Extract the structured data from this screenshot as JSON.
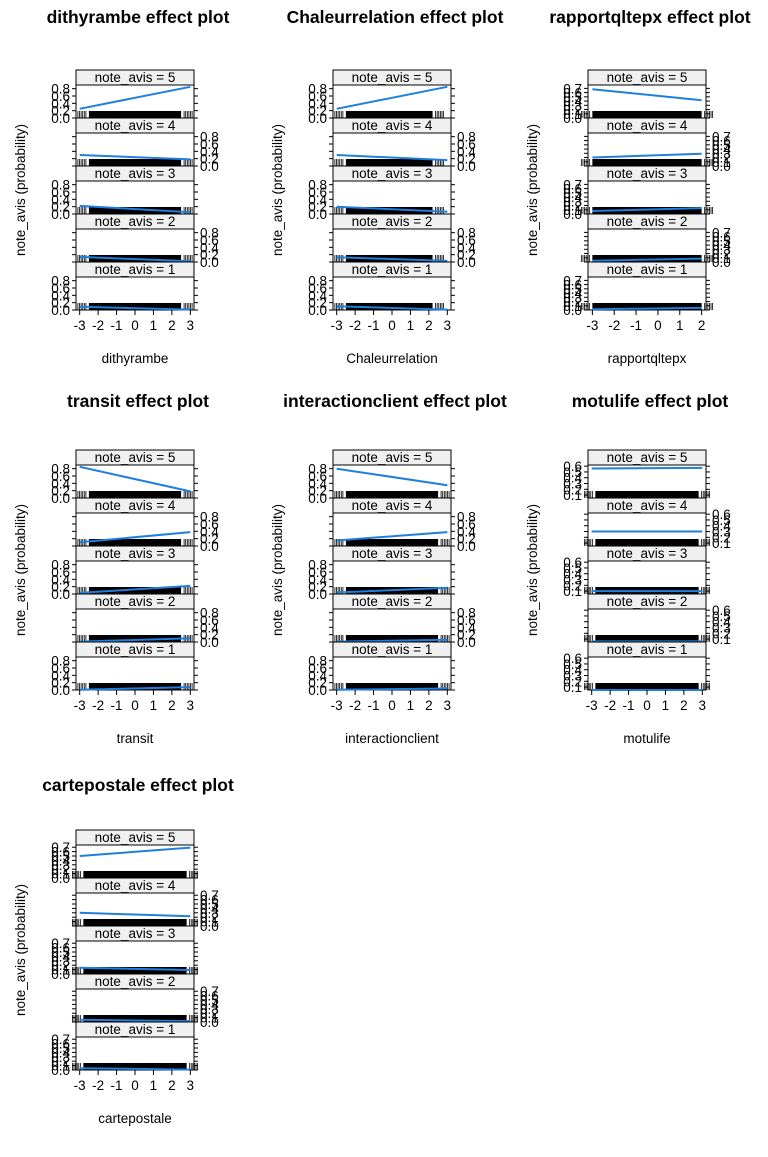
{
  "colors": {
    "line": "#1e7fe0",
    "strip_bg": "#f0f0f0",
    "frame": "#000000"
  },
  "chart_data": [
    {
      "type": "line",
      "title": "dithyrambe effect plot",
      "xlabel": "dithyrambe",
      "ylabel": "note_avis (probability)",
      "xlim": [
        -3.2,
        3.2
      ],
      "xticks": [
        "-3",
        "-2",
        "-1",
        "0",
        "1",
        "2",
        "3"
      ],
      "ylim": [
        0,
        0.9
      ],
      "yticks": [
        "0.0",
        "0.2",
        "0.4",
        "0.6",
        "0.8"
      ],
      "rug_range": [
        -2.5,
        2.5
      ],
      "grid": false,
      "series": [
        {
          "name": "note_avis = 5",
          "x": [
            -3,
            3
          ],
          "y": [
            0.25,
            0.85
          ]
        },
        {
          "name": "note_avis = 4",
          "x": [
            -3,
            3
          ],
          "y": [
            0.3,
            0.18
          ]
        },
        {
          "name": "note_avis = 3",
          "x": [
            -3,
            3
          ],
          "y": [
            0.22,
            0.05
          ]
        },
        {
          "name": "note_avis = 2",
          "x": [
            -3,
            3
          ],
          "y": [
            0.14,
            0.02
          ]
        },
        {
          "name": "note_avis = 1",
          "x": [
            -3,
            3
          ],
          "y": [
            0.09,
            0.01
          ]
        }
      ]
    },
    {
      "type": "line",
      "title": "Chaleurrelation effect plot",
      "xlabel": "Chaleurrelation",
      "ylabel": "note_avis (probability)",
      "xlim": [
        -3.2,
        3.2
      ],
      "xticks": [
        "-3",
        "-2",
        "-1",
        "0",
        "1",
        "2",
        "3"
      ],
      "ylim": [
        0,
        0.9
      ],
      "yticks": [
        "0.0",
        "0.2",
        "0.4",
        "0.6",
        "0.8"
      ],
      "rug_range": [
        -2.5,
        2.2
      ],
      "grid": false,
      "series": [
        {
          "name": "note_avis = 5",
          "x": [
            -3,
            3
          ],
          "y": [
            0.25,
            0.85
          ]
        },
        {
          "name": "note_avis = 4",
          "x": [
            -3,
            3
          ],
          "y": [
            0.3,
            0.16
          ]
        },
        {
          "name": "note_avis = 3",
          "x": [
            -3,
            3
          ],
          "y": [
            0.2,
            0.06
          ]
        },
        {
          "name": "note_avis = 2",
          "x": [
            -3,
            3
          ],
          "y": [
            0.13,
            0.03
          ]
        },
        {
          "name": "note_avis = 1",
          "x": [
            -3,
            3
          ],
          "y": [
            0.1,
            0.01
          ]
        }
      ]
    },
    {
      "type": "line",
      "title": "rapportqltepx effect plot",
      "xlabel": "rapportqltepx",
      "ylabel": "note_avis (probability)",
      "xlim": [
        -3.2,
        2.2
      ],
      "xticks": [
        "-3",
        "-2",
        "-1",
        "0",
        "1",
        "2"
      ],
      "ylim": [
        0,
        0.78
      ],
      "yticks": [
        "0.0",
        "0.1",
        "0.2",
        "0.3",
        "0.4",
        "0.5",
        "0.6",
        "0.7"
      ],
      "rug_range": [
        -3,
        2
      ],
      "grid": false,
      "series": [
        {
          "name": "note_avis = 5",
          "x": [
            -3,
            2
          ],
          "y": [
            0.68,
            0.42
          ]
        },
        {
          "name": "note_avis = 4",
          "x": [
            -3,
            2
          ],
          "y": [
            0.2,
            0.29
          ]
        },
        {
          "name": "note_avis = 3",
          "x": [
            -3,
            2
          ],
          "y": [
            0.07,
            0.14
          ]
        },
        {
          "name": "note_avis = 2",
          "x": [
            -3,
            2
          ],
          "y": [
            0.03,
            0.08
          ]
        },
        {
          "name": "note_avis = 1",
          "x": [
            -3,
            2
          ],
          "y": [
            0.02,
            0.05
          ]
        }
      ]
    },
    {
      "type": "line",
      "title": "transit effect plot",
      "xlabel": "transit",
      "ylabel": "note_avis (probability)",
      "xlim": [
        -3.2,
        3.2
      ],
      "xticks": [
        "-3",
        "-2",
        "-1",
        "0",
        "1",
        "2",
        "3"
      ],
      "ylim": [
        0,
        0.9
      ],
      "yticks": [
        "0.0",
        "0.2",
        "0.4",
        "0.6",
        "0.8"
      ],
      "rug_range": [
        -2.5,
        2.5
      ],
      "grid": false,
      "series": [
        {
          "name": "note_avis = 5",
          "x": [
            -3,
            3
          ],
          "y": [
            0.85,
            0.18
          ]
        },
        {
          "name": "note_avis = 4",
          "x": [
            -3,
            3
          ],
          "y": [
            0.1,
            0.38
          ]
        },
        {
          "name": "note_avis = 3",
          "x": [
            -3,
            3
          ],
          "y": [
            0.03,
            0.22
          ]
        },
        {
          "name": "note_avis = 2",
          "x": [
            -3,
            3
          ],
          "y": [
            0.01,
            0.1
          ]
        },
        {
          "name": "note_avis = 1",
          "x": [
            -3,
            3
          ],
          "y": [
            0.005,
            0.08
          ]
        }
      ]
    },
    {
      "type": "line",
      "title": "interactionclient effect plot",
      "xlabel": "interactionclient",
      "ylabel": "note_avis (probability)",
      "xlim": [
        -3.2,
        3.2
      ],
      "xticks": [
        "-3",
        "-2",
        "-1",
        "0",
        "1",
        "2",
        "3"
      ],
      "ylim": [
        0,
        0.9
      ],
      "yticks": [
        "0.0",
        "0.2",
        "0.4",
        "0.6",
        "0.8"
      ],
      "rug_range": [
        -2.5,
        2.5
      ],
      "grid": false,
      "series": [
        {
          "name": "note_avis = 5",
          "x": [
            -3,
            3
          ],
          "y": [
            0.8,
            0.35
          ]
        },
        {
          "name": "note_avis = 4",
          "x": [
            -3,
            3
          ],
          "y": [
            0.15,
            0.38
          ]
        },
        {
          "name": "note_avis = 3",
          "x": [
            -3,
            3
          ],
          "y": [
            0.04,
            0.17
          ]
        },
        {
          "name": "note_avis = 2",
          "x": [
            -3,
            3
          ],
          "y": [
            0.01,
            0.06
          ]
        },
        {
          "name": "note_avis = 1",
          "x": [
            -3,
            3
          ],
          "y": [
            0.005,
            0.04
          ]
        }
      ]
    },
    {
      "type": "line",
      "title": "motulife effect plot",
      "xlabel": "motulife",
      "ylabel": "note_avis (probability)",
      "xlim": [
        -3.2,
        3.2
      ],
      "xticks": [
        "-3",
        "-2",
        "-1",
        "0",
        "1",
        "2",
        "3"
      ],
      "ylim": [
        0.05,
        0.62
      ],
      "yticks": [
        "0.1",
        "0.2",
        "0.3",
        "0.4",
        "0.5",
        "0.6"
      ],
      "rug_range": [
        -2.8,
        2.8
      ],
      "grid": false,
      "series": [
        {
          "name": "note_avis = 5",
          "x": [
            -3,
            3
          ],
          "y": [
            0.56,
            0.57
          ]
        },
        {
          "name": "note_avis = 4",
          "x": [
            -3,
            3
          ],
          "y": [
            0.3,
            0.3
          ]
        },
        {
          "name": "note_avis = 3",
          "x": [
            -3,
            3
          ],
          "y": [
            0.1,
            0.1
          ]
        },
        {
          "name": "note_avis = 2",
          "x": [
            -3,
            3
          ],
          "y": [
            0.06,
            0.06
          ]
        },
        {
          "name": "note_avis = 1",
          "x": [
            -3,
            3
          ],
          "y": [
            0.05,
            0.05
          ]
        }
      ]
    },
    {
      "type": "line",
      "title": "cartepostale effect plot",
      "xlabel": "cartepostale",
      "ylabel": "note_avis (probability)",
      "xlim": [
        -3.2,
        3.2
      ],
      "xticks": [
        "-3",
        "-2",
        "-1",
        "0",
        "1",
        "2",
        "3"
      ],
      "ylim": [
        0,
        0.75
      ],
      "yticks": [
        "0.0",
        "0.1",
        "0.2",
        "0.3",
        "0.4",
        "0.5",
        "0.6",
        "0.7"
      ],
      "rug_range": [
        -2.8,
        2.8
      ],
      "grid": false,
      "series": [
        {
          "name": "note_avis = 5",
          "x": [
            -3,
            3
          ],
          "y": [
            0.5,
            0.69
          ]
        },
        {
          "name": "note_avis = 4",
          "x": [
            -3,
            3
          ],
          "y": [
            0.3,
            0.22
          ]
        },
        {
          "name": "note_avis = 3",
          "x": [
            -3,
            3
          ],
          "y": [
            0.14,
            0.09
          ]
        },
        {
          "name": "note_avis = 2",
          "x": [
            -3,
            3
          ],
          "y": [
            0.05,
            0.02
          ]
        },
        {
          "name": "note_avis = 1",
          "x": [
            -3,
            3
          ],
          "y": [
            0.04,
            0.01
          ]
        }
      ]
    }
  ]
}
